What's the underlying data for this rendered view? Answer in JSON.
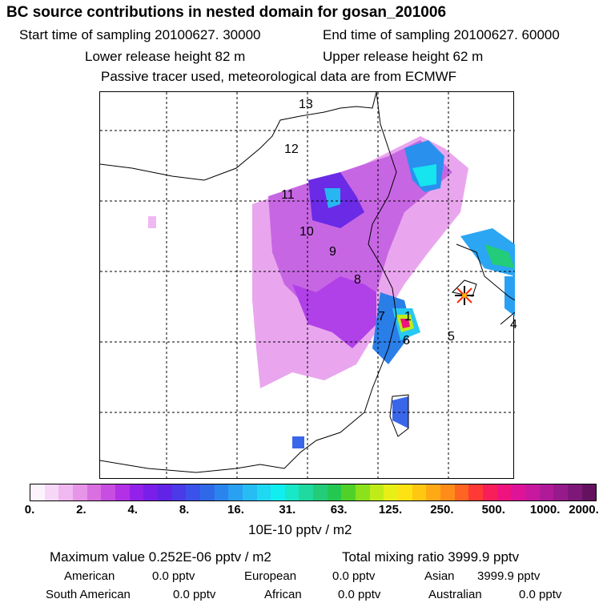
{
  "header": {
    "title": "BC  source contributions in nested domain for gosan_201006",
    "start_sampling": "Start time of sampling 20100627. 30000",
    "end_sampling": "End time of sampling 20100627. 60000",
    "lower_release": "Lower release height   82 m",
    "upper_release": "Upper release height   62 m",
    "tracer_info": "Passive tracer used, meteorological data are from ECMWF"
  },
  "chart_data": {
    "type": "heatmap",
    "title": "BC  source contributions in nested domain for gosan_201006",
    "colorbar": {
      "label": "10E-10 pptv / m2",
      "ticks": [
        "0.",
        "2.",
        "4.",
        "8.",
        "16.",
        "31.",
        "63.",
        "125.",
        "250.",
        "500.",
        "1000.",
        "2000."
      ],
      "colors": [
        "#fdf3fd",
        "#f7d7f7",
        "#f0b8f0",
        "#e695e8",
        "#d96fe0",
        "#c74ee0",
        "#b230e6",
        "#9421ea",
        "#7a1ee9",
        "#6124e6",
        "#4b3ae8",
        "#3a52ea",
        "#2e6ae8",
        "#2b84ee",
        "#2aa0f2",
        "#27bcf3",
        "#1fd8f2",
        "#10eef0",
        "#18e8c8",
        "#1fd9a0",
        "#22cc78",
        "#24c850",
        "#4fd12a",
        "#8be11c",
        "#bfec18",
        "#e6f018",
        "#ffe214",
        "#ffc612",
        "#ffaa14",
        "#ff8c18",
        "#ff6422",
        "#ff3a34",
        "#f81e5a",
        "#ee137e",
        "#dd1398",
        "#c818a0",
        "#b01a98",
        "#961a8a",
        "#7d1878",
        "#641260"
      ]
    },
    "site_marker": "gosan-star",
    "region_labels": [
      "1",
      "4",
      "5",
      "6",
      "7",
      "8",
      "9",
      "10",
      "11",
      "12",
      "13"
    ]
  },
  "stats": {
    "max_value": "Maximum value  0.252E-06 pptv / m2",
    "total_mixing": "Total mixing ratio     3999.9 pptv",
    "regions": [
      {
        "name": "American",
        "value": "0.0 pptv"
      },
      {
        "name": "European",
        "value": "0.0 pptv"
      },
      {
        "name": "Asian",
        "value": "3999.9 pptv"
      },
      {
        "name": "South American",
        "value": "0.0 pptv"
      },
      {
        "name": "African",
        "value": "0.0 pptv"
      },
      {
        "name": "Australian",
        "value": "0.0 pptv"
      }
    ]
  }
}
